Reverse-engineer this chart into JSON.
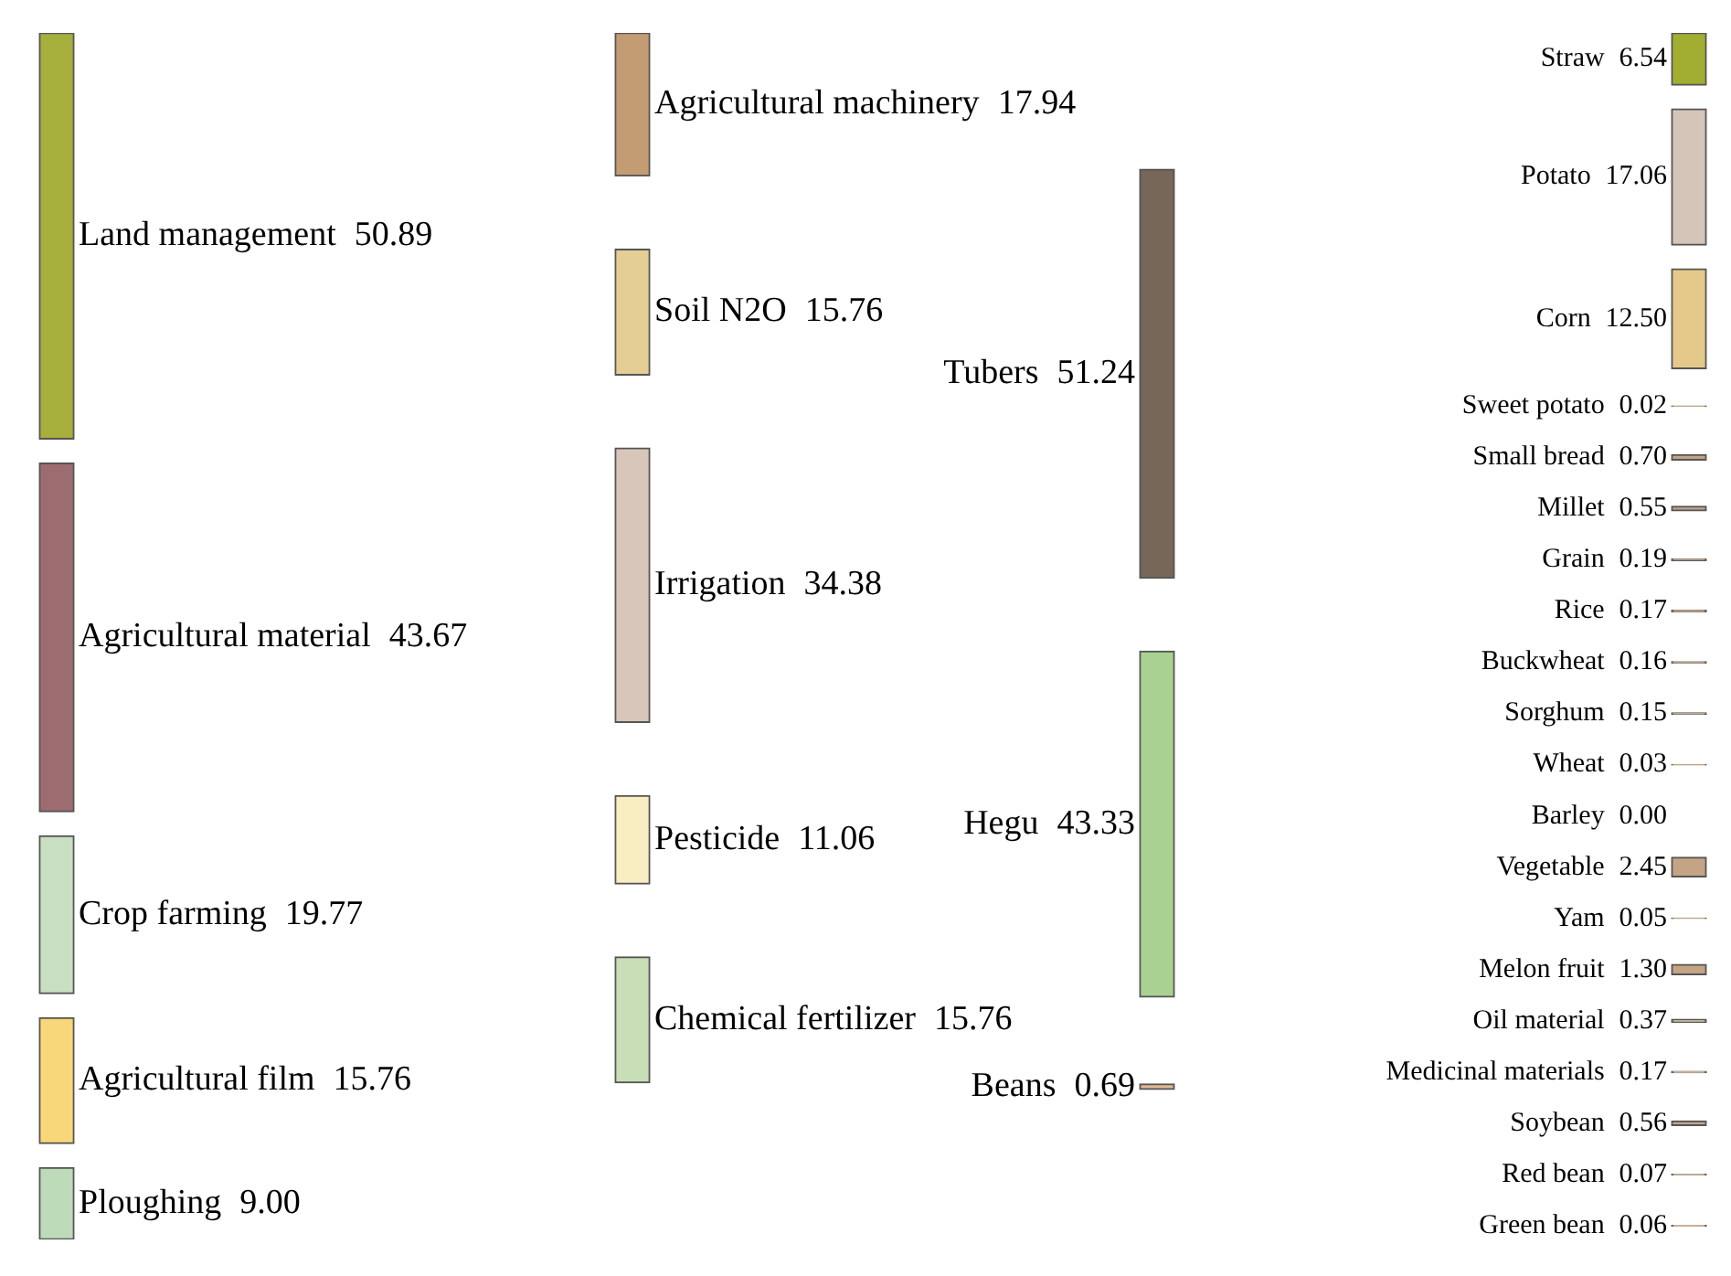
{
  "chart_data": [
    {
      "type": "other",
      "categories": [
        "Land management",
        "Agricultural material",
        "Crop farming",
        "Agricultural film",
        "Ploughing"
      ],
      "values": [
        50.89,
        43.67,
        19.77,
        15.76,
        9.0
      ],
      "value_labels": [
        "50.89",
        "43.67",
        "19.77",
        "15.76",
        "9.00"
      ],
      "colors": [
        "#a6ae3c",
        "#9c6c70",
        "#c9dfc2",
        "#f8d778",
        "#bddab9"
      ]
    },
    {
      "type": "other",
      "categories": [
        "Agricultural machinery",
        "Soil N2O",
        "Irrigation",
        "Pesticide",
        "Chemical fertilizer"
      ],
      "values": [
        17.94,
        15.76,
        34.38,
        11.06,
        15.76
      ],
      "value_labels": [
        "17.94",
        "15.76",
        "34.38",
        "11.06",
        "15.76"
      ],
      "colors": [
        "#c49c74",
        "#e5cd96",
        "#d9c6ba",
        "#f8eec2",
        "#c7deb6"
      ]
    },
    {
      "type": "other",
      "categories": [
        "Tubers",
        "Hegu",
        "Beans"
      ],
      "values": [
        51.24,
        43.33,
        0.69
      ],
      "value_labels": [
        "51.24",
        "43.33",
        "0.69"
      ],
      "colors": [
        "#776758",
        "#a9d192",
        "#e1b991"
      ]
    },
    {
      "type": "other",
      "categories": [
        "Straw",
        "Potato",
        "Corn",
        "Sweet potato",
        "Small bread",
        "Millet",
        "Grain",
        "Rice",
        "Buckwheat",
        "Sorghum",
        "Wheat",
        "Barley",
        "Vegetable",
        "Yam",
        "Melon fruit",
        "Oil material",
        "Medicinal materials",
        "Soybean",
        "Red bean",
        "Green bean"
      ],
      "values": [
        6.54,
        17.06,
        12.5,
        0.02,
        0.7,
        0.55,
        0.19,
        0.17,
        0.16,
        0.15,
        0.03,
        0,
        2.45,
        0.05,
        1.3,
        0.37,
        0.17,
        0.56,
        0.07,
        0.06
      ],
      "value_labels": [
        "6.54",
        "17.06",
        "12.50",
        "0.02",
        "0.70",
        "0.55",
        "0.19",
        "0.17",
        "0.16",
        "0.15",
        "0.03",
        "0.00",
        "2.45",
        "0.05",
        "1.30",
        "0.37",
        "0.17",
        "0.56",
        "0.07",
        "0.06"
      ],
      "colors": [
        "#a1ae32",
        "#d5c5b9",
        "#e5c98a",
        "#c4a484",
        "#c4a484",
        "#c4a484",
        "#c4a484",
        "#c4a484",
        "#c4a484",
        "#c4a484",
        "#c4a484",
        "#c4a484",
        "#c4a484",
        "#c4a484",
        "#c4a484",
        "#c4a484",
        "#c4a484",
        "#c4a484",
        "#c4a484",
        "#c4a484"
      ]
    }
  ]
}
